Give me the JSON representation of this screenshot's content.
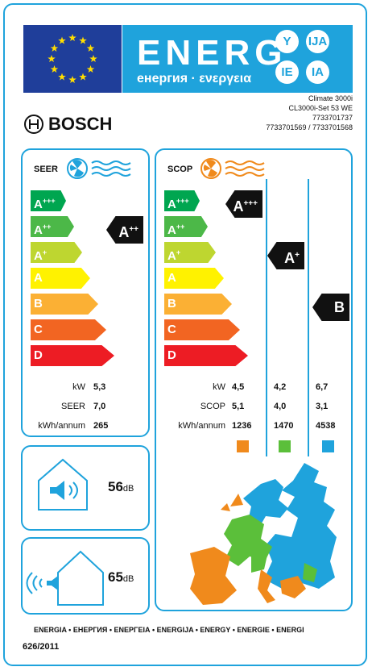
{
  "header": {
    "energy_word": "ENERG",
    "energy_sub": "енергия · ενεργεια",
    "lang_badges": [
      "Y",
      "IJA",
      "IE",
      "IA"
    ],
    "brand": "BOSCH",
    "model_lines": [
      "Climate 3000i",
      "CL3000i-Set 53 WE",
      "7733701737",
      "7733701569 / 7733701568"
    ]
  },
  "seer_panel": {
    "title": "SEER",
    "classes": [
      {
        "label": "A",
        "sup": "+++",
        "color": "#00a650"
      },
      {
        "label": "A",
        "sup": "++",
        "color": "#4cb848"
      },
      {
        "label": "A",
        "sup": "+",
        "color": "#bed630"
      },
      {
        "label": "A",
        "sup": "",
        "color": "#fff200"
      },
      {
        "label": "B",
        "sup": "",
        "color": "#fbb034"
      },
      {
        "label": "C",
        "sup": "",
        "color": "#f26522"
      },
      {
        "label": "D",
        "sup": "",
        "color": "#ed1c24"
      }
    ],
    "rating": {
      "label": "A",
      "sup": "++"
    },
    "rows": [
      {
        "label": "kW",
        "value": "5,3"
      },
      {
        "label": "SEER",
        "value": "7,0"
      },
      {
        "label": "kWh/annum",
        "value": "265"
      }
    ]
  },
  "scop_panel": {
    "title": "SCOP",
    "ratings": [
      {
        "label": "A",
        "sup": "+++"
      },
      {
        "label": "A",
        "sup": "+"
      },
      {
        "label": "B",
        "sup": ""
      }
    ],
    "row_labels": [
      "kW",
      "SCOP",
      "kWh/annum"
    ],
    "columns": [
      {
        "kw": "4,5",
        "scop": "5,1",
        "kwh": "1236",
        "color": "#f08a1c"
      },
      {
        "kw": "4,2",
        "scop": "4,0",
        "kwh": "1470",
        "color": "#5bbf3a"
      },
      {
        "kw": "6,7",
        "scop": "3,1",
        "kwh": "4538",
        "color": "#1fa3dc"
      }
    ]
  },
  "noise": {
    "indoor": {
      "value": "56",
      "unit": "dB"
    },
    "outdoor": {
      "value": "65",
      "unit": "dB"
    }
  },
  "footer": {
    "energia_line": "ENERGIA • ЕНЕРГИЯ • ΕΝΕΡΓΕΙΑ • ENERGIJA • ENERGY • ENERGIE • ENERGI",
    "regulation": "626/2011"
  },
  "colors": {
    "accent": "#1fa3dc",
    "eu_blue": "#1f3e9a",
    "star": "#ffdd00"
  }
}
